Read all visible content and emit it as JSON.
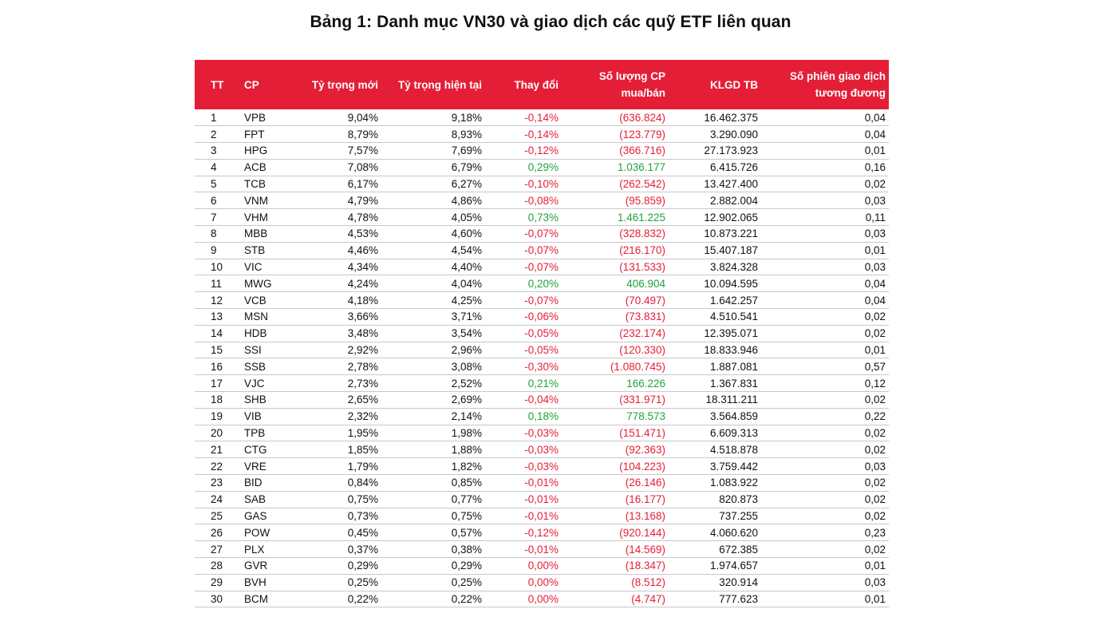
{
  "title": "Bảng 1: Danh mục VN30 và giao dịch các quỹ ETF liên quan",
  "colors": {
    "header_bg": "#e41e36",
    "positive": "#1fa33a",
    "negative": "#e41e36"
  },
  "table": {
    "headers": [
      "TT",
      "CP",
      "Tỷ trọng mới",
      "Tỷ trọng hiện tại",
      "Thay đổi",
      "Số lượng CP\nmua/bán",
      "KLGD TB",
      "Số phiên giao dịch\ntương đương"
    ],
    "rows": [
      {
        "tt": "1",
        "cp": "VPB",
        "new": "9,04%",
        "cur": "9,18%",
        "chg": "-0,14%",
        "qty": "(636.824)",
        "vol": "16.462.375",
        "ses": "0,04",
        "sign": "neg"
      },
      {
        "tt": "2",
        "cp": "FPT",
        "new": "8,79%",
        "cur": "8,93%",
        "chg": "-0,14%",
        "qty": "(123.779)",
        "vol": "3.290.090",
        "ses": "0,04",
        "sign": "neg"
      },
      {
        "tt": "3",
        "cp": "HPG",
        "new": "7,57%",
        "cur": "7,69%",
        "chg": "-0,12%",
        "qty": "(366.716)",
        "vol": "27.173.923",
        "ses": "0,01",
        "sign": "neg"
      },
      {
        "tt": "4",
        "cp": "ACB",
        "new": "7,08%",
        "cur": "6,79%",
        "chg": "0,29%",
        "qty": "1.036.177",
        "vol": "6.415.726",
        "ses": "0,16",
        "sign": "pos"
      },
      {
        "tt": "5",
        "cp": "TCB",
        "new": "6,17%",
        "cur": "6,27%",
        "chg": "-0,10%",
        "qty": "(262.542)",
        "vol": "13.427.400",
        "ses": "0,02",
        "sign": "neg"
      },
      {
        "tt": "6",
        "cp": "VNM",
        "new": "4,79%",
        "cur": "4,86%",
        "chg": "-0,08%",
        "qty": "(95.859)",
        "vol": "2.882.004",
        "ses": "0,03",
        "sign": "neg"
      },
      {
        "tt": "7",
        "cp": "VHM",
        "new": "4,78%",
        "cur": "4,05%",
        "chg": "0,73%",
        "qty": "1.461.225",
        "vol": "12.902.065",
        "ses": "0,11",
        "sign": "pos"
      },
      {
        "tt": "8",
        "cp": "MBB",
        "new": "4,53%",
        "cur": "4,60%",
        "chg": "-0,07%",
        "qty": "(328.832)",
        "vol": "10.873.221",
        "ses": "0,03",
        "sign": "neg"
      },
      {
        "tt": "9",
        "cp": "STB",
        "new": "4,46%",
        "cur": "4,54%",
        "chg": "-0,07%",
        "qty": "(216.170)",
        "vol": "15.407.187",
        "ses": "0,01",
        "sign": "neg"
      },
      {
        "tt": "10",
        "cp": "VIC",
        "new": "4,34%",
        "cur": "4,40%",
        "chg": "-0,07%",
        "qty": "(131.533)",
        "vol": "3.824.328",
        "ses": "0,03",
        "sign": "neg"
      },
      {
        "tt": "11",
        "cp": "MWG",
        "new": "4,24%",
        "cur": "4,04%",
        "chg": "0,20%",
        "qty": "406.904",
        "vol": "10.094.595",
        "ses": "0,04",
        "sign": "pos"
      },
      {
        "tt": "12",
        "cp": "VCB",
        "new": "4,18%",
        "cur": "4,25%",
        "chg": "-0,07%",
        "qty": "(70.497)",
        "vol": "1.642.257",
        "ses": "0,04",
        "sign": "neg"
      },
      {
        "tt": "13",
        "cp": "MSN",
        "new": "3,66%",
        "cur": "3,71%",
        "chg": "-0,06%",
        "qty": "(73.831)",
        "vol": "4.510.541",
        "ses": "0,02",
        "sign": "neg"
      },
      {
        "tt": "14",
        "cp": "HDB",
        "new": "3,48%",
        "cur": "3,54%",
        "chg": "-0,05%",
        "qty": "(232.174)",
        "vol": "12.395.071",
        "ses": "0,02",
        "sign": "neg"
      },
      {
        "tt": "15",
        "cp": "SSI",
        "new": "2,92%",
        "cur": "2,96%",
        "chg": "-0,05%",
        "qty": "(120.330)",
        "vol": "18.833.946",
        "ses": "0,01",
        "sign": "neg"
      },
      {
        "tt": "16",
        "cp": "SSB",
        "new": "2,78%",
        "cur": "3,08%",
        "chg": "-0,30%",
        "qty": "(1.080.745)",
        "vol": "1.887.081",
        "ses": "0,57",
        "sign": "neg"
      },
      {
        "tt": "17",
        "cp": "VJC",
        "new": "2,73%",
        "cur": "2,52%",
        "chg": "0,21%",
        "qty": "166.226",
        "vol": "1.367.831",
        "ses": "0,12",
        "sign": "pos"
      },
      {
        "tt": "18",
        "cp": "SHB",
        "new": "2,65%",
        "cur": "2,69%",
        "chg": "-0,04%",
        "qty": "(331.971)",
        "vol": "18.311.211",
        "ses": "0,02",
        "sign": "neg"
      },
      {
        "tt": "19",
        "cp": "VIB",
        "new": "2,32%",
        "cur": "2,14%",
        "chg": "0,18%",
        "qty": "778.573",
        "vol": "3.564.859",
        "ses": "0,22",
        "sign": "pos"
      },
      {
        "tt": "20",
        "cp": "TPB",
        "new": "1,95%",
        "cur": "1,98%",
        "chg": "-0,03%",
        "qty": "(151.471)",
        "vol": "6.609.313",
        "ses": "0,02",
        "sign": "neg"
      },
      {
        "tt": "21",
        "cp": "CTG",
        "new": "1,85%",
        "cur": "1,88%",
        "chg": "-0,03%",
        "qty": "(92.363)",
        "vol": "4.518.878",
        "ses": "0,02",
        "sign": "neg"
      },
      {
        "tt": "22",
        "cp": "VRE",
        "new": "1,79%",
        "cur": "1,82%",
        "chg": "-0,03%",
        "qty": "(104.223)",
        "vol": "3.759.442",
        "ses": "0,03",
        "sign": "neg"
      },
      {
        "tt": "23",
        "cp": "BID",
        "new": "0,84%",
        "cur": "0,85%",
        "chg": "-0,01%",
        "qty": "(26.146)",
        "vol": "1.083.922",
        "ses": "0,02",
        "sign": "neg"
      },
      {
        "tt": "24",
        "cp": "SAB",
        "new": "0,75%",
        "cur": "0,77%",
        "chg": "-0,01%",
        "qty": "(16.177)",
        "vol": "820.873",
        "ses": "0,02",
        "sign": "neg"
      },
      {
        "tt": "25",
        "cp": "GAS",
        "new": "0,73%",
        "cur": "0,75%",
        "chg": "-0,01%",
        "qty": "(13.168)",
        "vol": "737.255",
        "ses": "0,02",
        "sign": "neg"
      },
      {
        "tt": "26",
        "cp": "POW",
        "new": "0,45%",
        "cur": "0,57%",
        "chg": "-0,12%",
        "qty": "(920.144)",
        "vol": "4.060.620",
        "ses": "0,23",
        "sign": "neg"
      },
      {
        "tt": "27",
        "cp": "PLX",
        "new": "0,37%",
        "cur": "0,38%",
        "chg": "-0,01%",
        "qty": "(14.569)",
        "vol": "672.385",
        "ses": "0,02",
        "sign": "neg"
      },
      {
        "tt": "28",
        "cp": "GVR",
        "new": "0,29%",
        "cur": "0,29%",
        "chg": "0,00%",
        "qty": "(18.347)",
        "vol": "1.974.657",
        "ses": "0,01",
        "sign": "neg"
      },
      {
        "tt": "29",
        "cp": "BVH",
        "new": "0,25%",
        "cur": "0,25%",
        "chg": "0,00%",
        "qty": "(8.512)",
        "vol": "320.914",
        "ses": "0,03",
        "sign": "neg"
      },
      {
        "tt": "30",
        "cp": "BCM",
        "new": "0,22%",
        "cur": "0,22%",
        "chg": "0,00%",
        "qty": "(4.747)",
        "vol": "777.623",
        "ses": "0,01",
        "sign": "neg"
      }
    ]
  }
}
